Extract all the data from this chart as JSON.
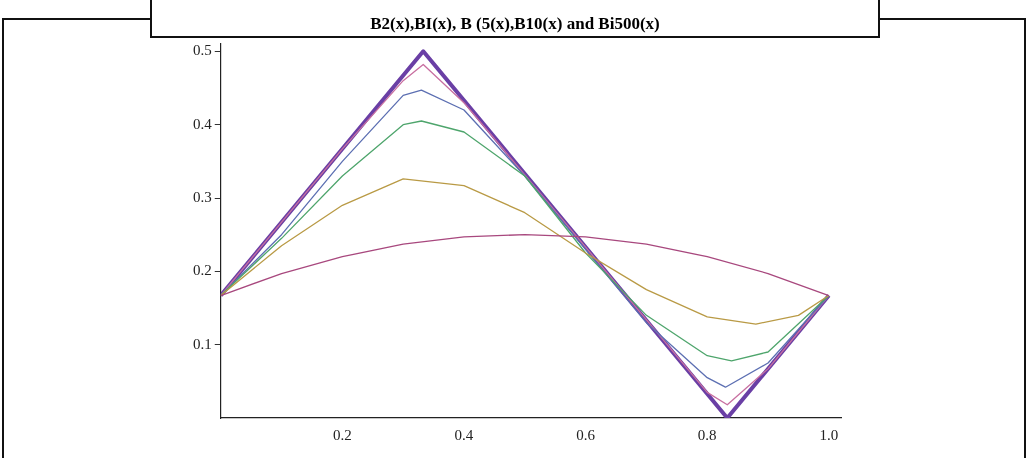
{
  "chart_data": {
    "type": "line",
    "title": "B2(x),BI(x), B (5(x),B10(x) and Bi500(x)",
    "xlim": [
      0,
      1.02
    ],
    "xticks": [
      0.2,
      0.4,
      0.6,
      0.8,
      {
        "value": 1,
        "label": "1.0"
      }
    ],
    "ylim": [
      0,
      0.51
    ],
    "yticks": [
      0.1,
      0.2,
      0.3,
      0.4,
      0.5
    ],
    "grid": false,
    "legend": false,
    "marker": "none",
    "line_style": "solid",
    "series": [
      {
        "color": "#a8487e",
        "x": [
          0,
          0.1,
          0.2,
          0.3,
          0.4,
          0.5,
          0.6,
          0.7,
          0.8,
          0.9,
          1
        ],
        "values": [
          0.167,
          0.197,
          0.22,
          0.237,
          0.247,
          0.25,
          0.247,
          0.237,
          0.22,
          0.197,
          0.167
        ]
      },
      {
        "color": "#b99a45",
        "x": [
          0,
          0.1,
          0.2,
          0.3,
          0.4,
          0.5,
          0.6,
          0.7,
          0.8,
          0.88,
          0.95,
          1
        ],
        "values": [
          0.167,
          0.235,
          0.29,
          0.326,
          0.317,
          0.28,
          0.225,
          0.175,
          0.138,
          0.128,
          0.14,
          0.167
        ]
      },
      {
        "color": "#4ea56c",
        "x": [
          0,
          0.1,
          0.2,
          0.3,
          0.33,
          0.4,
          0.5,
          0.6,
          0.7,
          0.8,
          0.84,
          0.9,
          1
        ],
        "values": [
          0.167,
          0.245,
          0.33,
          0.4,
          0.405,
          0.39,
          0.33,
          0.225,
          0.14,
          0.085,
          0.078,
          0.09,
          0.167
        ]
      },
      {
        "color": "#5c6fb2",
        "x": [
          0,
          0.1,
          0.2,
          0.3,
          0.33,
          0.4,
          0.5,
          0.6,
          0.7,
          0.8,
          0.83,
          0.9,
          1
        ],
        "values": [
          0.167,
          0.25,
          0.35,
          0.44,
          0.447,
          0.42,
          0.33,
          0.23,
          0.13,
          0.055,
          0.042,
          0.075,
          0.167
        ]
      },
      {
        "color": "#c86fa0",
        "x": [
          0,
          0.2,
          0.3,
          0.333,
          0.4,
          0.6,
          0.8,
          0.833,
          0.9,
          1
        ],
        "values": [
          0.167,
          0.367,
          0.46,
          0.482,
          0.43,
          0.233,
          0.035,
          0.018,
          0.067,
          0.167
        ]
      },
      {
        "color": "#6a3fa5",
        "x": [
          0,
          0.333,
          0.833,
          1
        ],
        "values": [
          0.167,
          0.5,
          0,
          0.167
        ]
      }
    ]
  }
}
